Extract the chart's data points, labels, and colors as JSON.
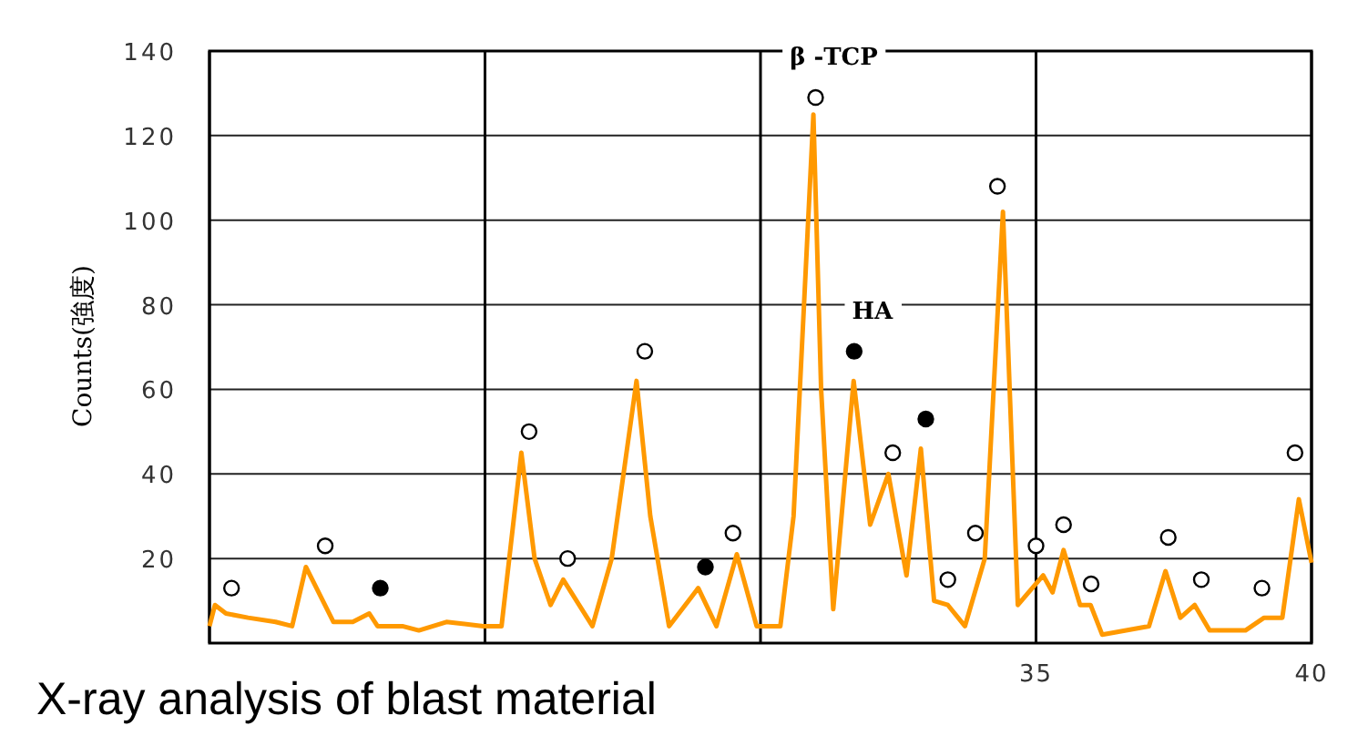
{
  "chart_data": {
    "type": "line",
    "ylabel": "Counts(強度)",
    "xlim": [
      20,
      40
    ],
    "ylim": [
      0,
      140
    ],
    "xticks": [
      {
        "value": 20,
        "label": null
      },
      {
        "value": 25,
        "label": null
      },
      {
        "value": 30,
        "label": null
      },
      35,
      40
    ],
    "yticks": [
      20,
      40,
      60,
      80,
      100,
      120,
      140
    ],
    "grid": true,
    "legend": false,
    "annotations": [
      "X-ray analysis of blast material"
    ],
    "series": [
      {
        "color": "#ff9900",
        "marker": "none",
        "line_style": "solid",
        "x": [
          20,
          20.1,
          20.3,
          20.7,
          21.2,
          21.5,
          21.75,
          22.25,
          22.6,
          22.9,
          23.05,
          23.5,
          23.8,
          24.3,
          24.97,
          25.3,
          25.66,
          25.9,
          26.19,
          26.42,
          26.95,
          27.3,
          27.75,
          28.0,
          28.34,
          28.87,
          29.2,
          29.57,
          29.93,
          30.36,
          30.6,
          30.96,
          31.1,
          31.32,
          31.69,
          31.99,
          32.32,
          32.65,
          32.91,
          33.15,
          33.4,
          33.71,
          34.07,
          34.4,
          34.67,
          35.13,
          35.3,
          35.5,
          35.8,
          35.99,
          36.2,
          37.05,
          37.35,
          37.62,
          37.88,
          38.15,
          38.8,
          39.14,
          39.47,
          39.77,
          40
        ],
        "values": [
          4,
          9,
          7,
          6,
          5,
          4,
          18,
          5,
          5,
          7,
          4,
          4,
          3,
          5,
          4,
          4,
          45,
          20,
          9,
          15,
          4,
          20,
          62,
          30,
          4,
          13,
          4,
          21,
          4,
          4,
          30,
          125,
          60,
          8,
          62,
          28,
          40,
          16,
          46,
          10,
          9,
          4,
          20,
          102,
          9,
          16,
          12,
          22,
          9,
          9,
          2,
          4,
          17,
          6,
          9,
          3,
          3,
          6,
          6,
          34,
          19
        ]
      },
      {
        "type": "scatter",
        "name": "β -TCP",
        "color": "#ffffff",
        "marker": "circle",
        "x": [
          20.4,
          22.1,
          25.8,
          26.5,
          27.9,
          29.5,
          31.0,
          32.4,
          33.4,
          33.9,
          34.3,
          35.0,
          35.5,
          36.0,
          37.4,
          38.0,
          39.1,
          39.7
        ],
        "values": [
          13,
          23,
          50,
          20,
          69,
          26,
          129,
          45,
          15,
          26,
          108,
          23,
          28,
          14,
          25,
          15,
          13,
          45
        ]
      },
      {
        "type": "scatter",
        "name": "HA",
        "color": "#000000",
        "marker": "circle",
        "x": [
          23.1,
          29.0,
          31.7,
          33.0
        ],
        "values": [
          13,
          18,
          69,
          53
        ]
      }
    ]
  }
}
